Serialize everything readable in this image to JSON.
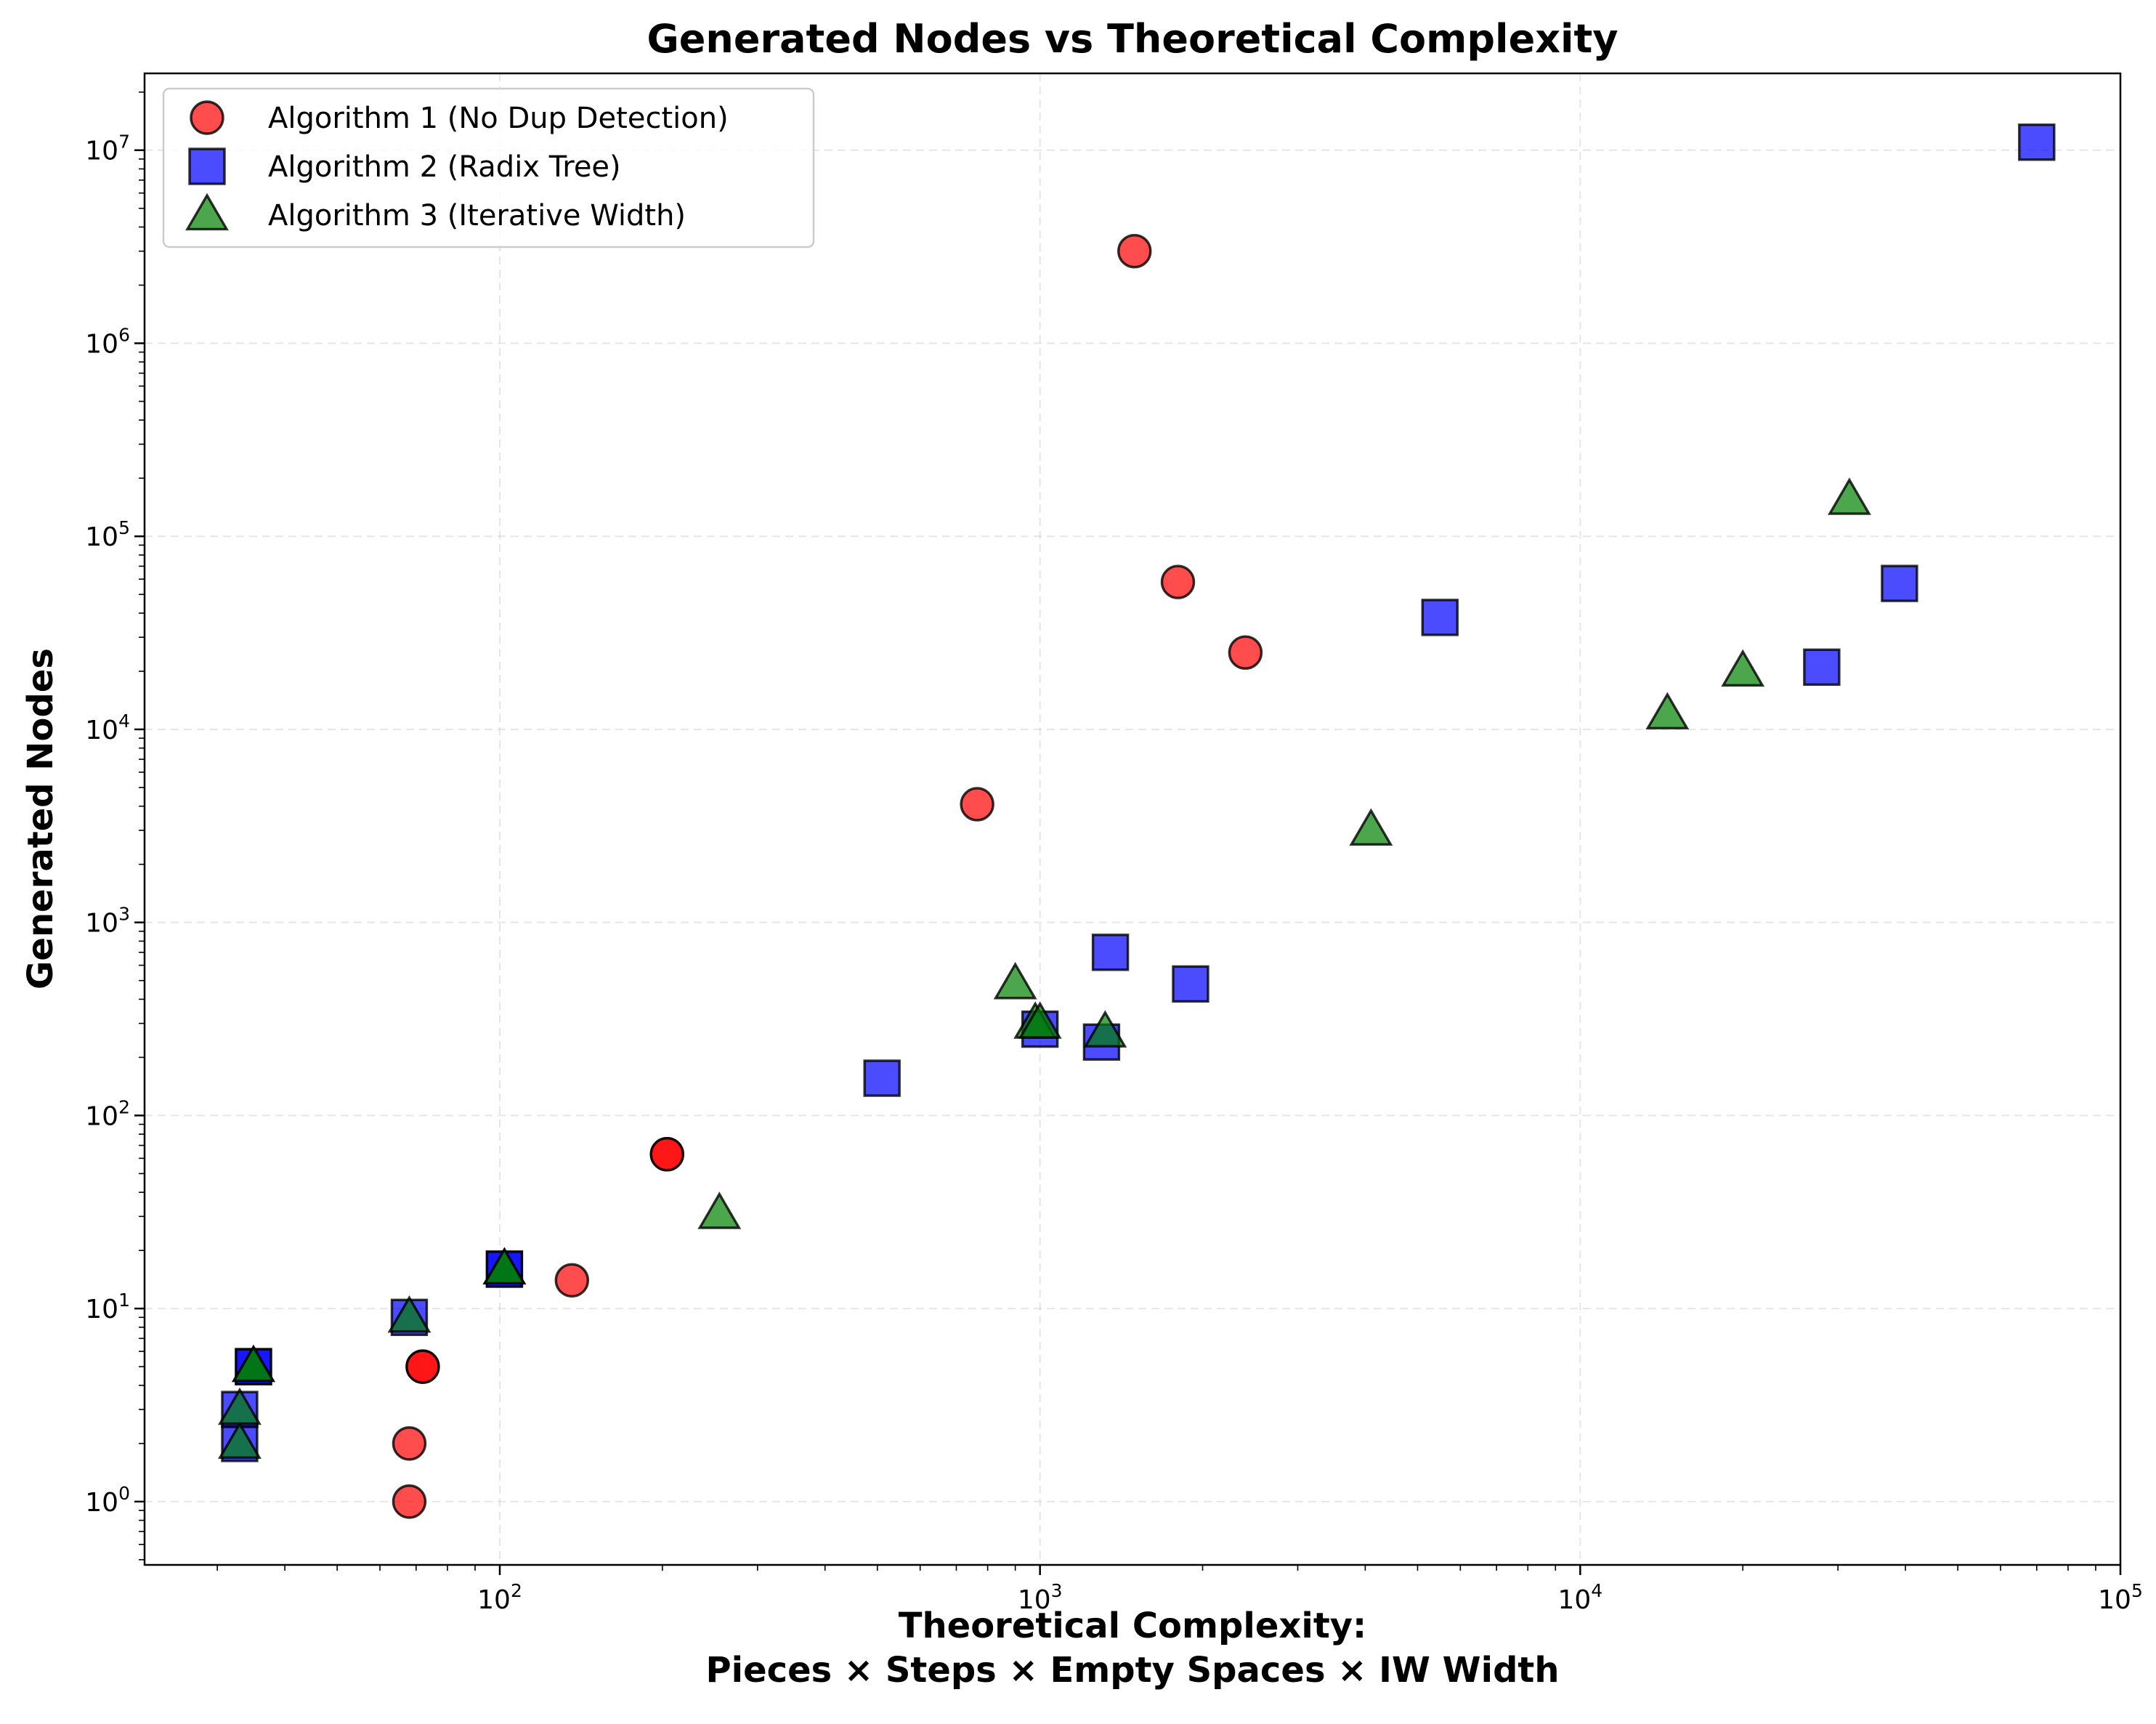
{
  "chart_data": {
    "type": "scatter",
    "title": "Generated Nodes vs Theoretical Complexity",
    "xlabel_lines": [
      "Theoretical Complexity:",
      "Pieces × Steps × Empty Spaces × IW Width"
    ],
    "ylabel": "Generated Nodes",
    "xscale": "log",
    "yscale": "log",
    "xlim": [
      22,
      100000
    ],
    "ylim": [
      0.47,
      25000000
    ],
    "x_ticks": [
      {
        "base": "10",
        "exp": "2",
        "value": 100
      },
      {
        "base": "10",
        "exp": "3",
        "value": 1000
      },
      {
        "base": "10",
        "exp": "4",
        "value": 10000
      },
      {
        "base": "10",
        "exp": "5",
        "value": 100000
      }
    ],
    "y_ticks": [
      {
        "base": "10",
        "exp": "0",
        "value": 1
      },
      {
        "base": "10",
        "exp": "1",
        "value": 10
      },
      {
        "base": "10",
        "exp": "2",
        "value": 100
      },
      {
        "base": "10",
        "exp": "3",
        "value": 1000
      },
      {
        "base": "10",
        "exp": "4",
        "value": 10000
      },
      {
        "base": "10",
        "exp": "5",
        "value": 100000
      },
      {
        "base": "10",
        "exp": "6",
        "value": 1000000
      },
      {
        "base": "10",
        "exp": "7",
        "value": 10000000
      }
    ],
    "grid": true,
    "legend_position": "top-left",
    "series": [
      {
        "name": "Algorithm 1 (No Dup Detection)",
        "marker": "circle",
        "color": "#ff0000",
        "x": [
          68,
          68,
          72,
          72,
          136,
          204,
          204,
          765,
          1496,
          1800,
          2400
        ],
        "y": [
          1,
          2,
          5,
          5,
          14,
          63,
          63,
          4096,
          3000000,
          58000,
          25000
        ]
      },
      {
        "name": "Algorithm 2 (Radix Tree)",
        "marker": "square",
        "color": "#0000ff",
        "x": [
          33,
          33,
          35,
          35,
          68,
          102,
          102,
          510,
          1000,
          1300,
          1350,
          1900,
          5500,
          28000,
          39000,
          70000
        ],
        "y": [
          2,
          3,
          5,
          5,
          9,
          16,
          16,
          156,
          280,
          240,
          700,
          480,
          38000,
          21000,
          57000,
          11000000
        ]
      },
      {
        "name": "Algorithm 3 (Iterative Width)",
        "marker": "triangle",
        "color": "#008000",
        "x": [
          33,
          33,
          35,
          35,
          68,
          102,
          102,
          255,
          900,
          980,
          1000,
          1320,
          4100,
          14500,
          20000,
          31500
        ],
        "y": [
          2,
          3,
          5,
          5,
          9,
          16,
          16,
          31,
          480,
          300,
          300,
          270,
          3000,
          12000,
          20000,
          155000
        ]
      }
    ]
  }
}
